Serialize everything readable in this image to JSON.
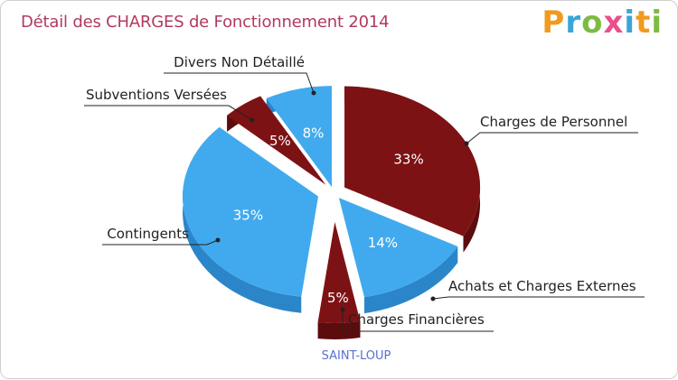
{
  "title": "Détail des CHARGES de Fonctionnement 2014",
  "logo": {
    "text": "Proxiti"
  },
  "footer": "SAINT-LOUP",
  "colors": {
    "light": "#41aaee",
    "light_side": "#2b86c9",
    "dark": "#7d1214",
    "dark_side": "#5c0c0d"
  },
  "chart_data": {
    "type": "pie",
    "title": "Détail des CHARGES de Fonctionnement 2014",
    "series": [
      {
        "categories": [
          "Charges de Personnel",
          "Achats et Charges Externes",
          "Charges Financières",
          "Contingents",
          "Subventions Versées",
          "Divers Non Détaillé"
        ],
        "values": [
          33,
          14,
          5,
          35,
          5,
          8
        ],
        "labels": [
          "33%",
          "14%",
          "5%",
          "35%",
          "5%",
          "8%"
        ],
        "colors": [
          "#7d1214",
          "#41aaee",
          "#7d1214",
          "#41aaee",
          "#7d1214",
          "#41aaee"
        ]
      }
    ]
  }
}
